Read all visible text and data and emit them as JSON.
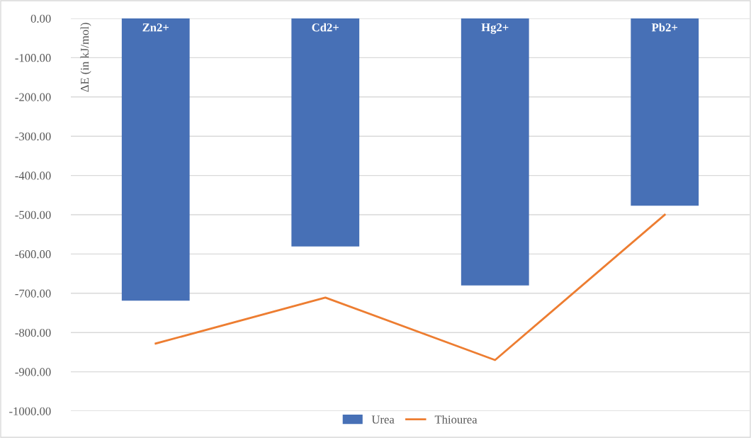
{
  "chart_data": {
    "type": "bar",
    "ylabel": "ΔE (in kJ/mol)",
    "categories": [
      "Zn2+",
      "Cd2+",
      "Hg2+",
      "Pb2+"
    ],
    "series": [
      {
        "name": "Urea",
        "color": "#4770b6",
        "values": [
          -719,
          -581,
          -680,
          -477
        ]
      },
      {
        "name": "Thiourea",
        "type": "line",
        "color": "#ed7d31",
        "values": [
          -828,
          -711,
          -870,
          -500
        ]
      }
    ],
    "ylim": [
      -1000,
      0
    ],
    "yticks": [
      {
        "value": 0,
        "label": "0.00"
      },
      {
        "value": -100,
        "label": "-100.00"
      },
      {
        "value": -200,
        "label": "-200.00"
      },
      {
        "value": -300,
        "label": "-300.00"
      },
      {
        "value": -400,
        "label": "-400.00"
      },
      {
        "value": -500,
        "label": "-500.00"
      },
      {
        "value": -600,
        "label": "-600.00"
      },
      {
        "value": -700,
        "label": "-700.00"
      },
      {
        "value": -800,
        "label": "-800.00"
      },
      {
        "value": -900,
        "label": "-900.00"
      },
      {
        "value": -1000,
        "label": "-1000.00"
      }
    ],
    "grid": "y",
    "legend": "bottom"
  }
}
